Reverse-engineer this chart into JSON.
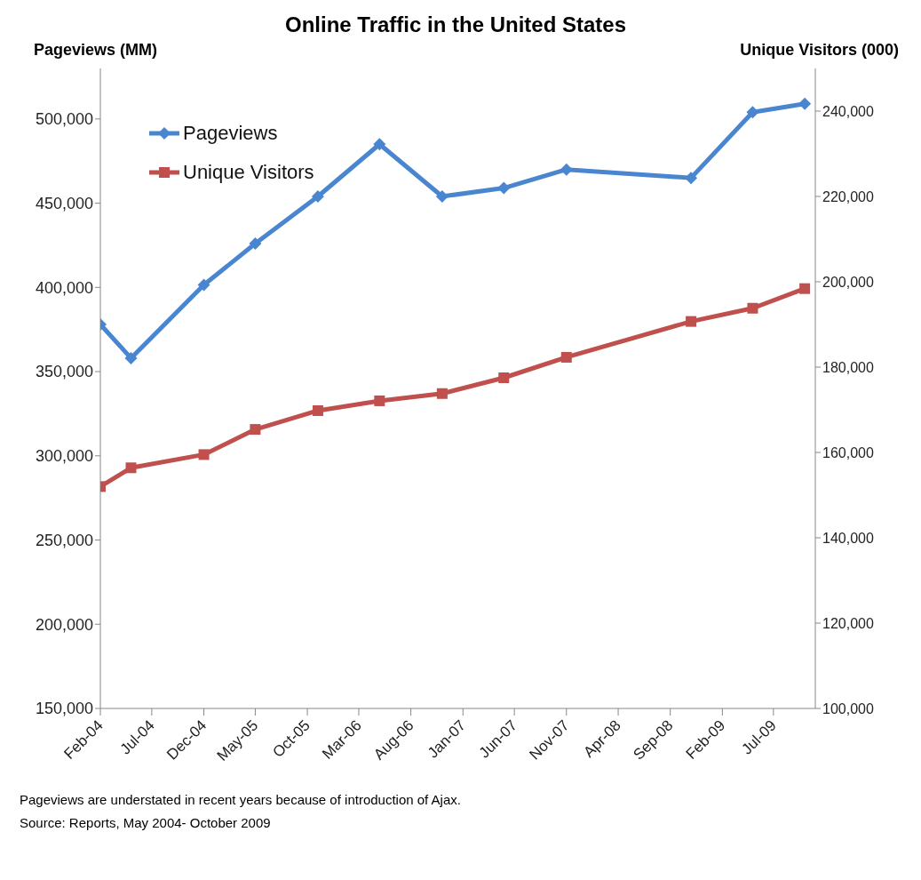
{
  "chart_data": {
    "type": "line",
    "title": "Online Traffic in the United States",
    "ylabel": "Pageviews (MM)",
    "y2label": "Unique Visitors (000)",
    "x": [
      "2004-02",
      "2004-05",
      "2004-12",
      "2005-05",
      "2005-11",
      "2006-05",
      "2006-11",
      "2007-05",
      "2007-11",
      "2008-11",
      "2009-05",
      "2009-10"
    ],
    "series": [
      {
        "name": "Pageviews",
        "color": "#4a86d0",
        "marker": "diamond",
        "values": [
          378000,
          358000,
          401500,
          426000,
          454000,
          485000,
          454000,
          459000,
          470000,
          465000,
          504000,
          509000
        ]
      },
      {
        "name": "Unique Visitors",
        "color": "#c0504d",
        "marker": "square",
        "axis": "y2",
        "values": [
          152000,
          156400,
          159500,
          165400,
          169800,
          172100,
          173800,
          177500,
          182300,
          190700,
          193800,
          198400
        ]
      }
    ],
    "xlim": [
      "2004-02",
      "2009-11"
    ],
    "xticks": [
      {
        "value": "2004-02",
        "label": "Feb-04"
      },
      {
        "value": "2004-07",
        "label": "Jul-04"
      },
      {
        "value": "2004-12",
        "label": "Dec-04"
      },
      {
        "value": "2005-05",
        "label": "May-05"
      },
      {
        "value": "2005-10",
        "label": "Oct-05"
      },
      {
        "value": "2006-03",
        "label": "Mar-06"
      },
      {
        "value": "2006-08",
        "label": "Aug-06"
      },
      {
        "value": "2007-01",
        "label": "Jan-07"
      },
      {
        "value": "2007-06",
        "label": "Jun-07"
      },
      {
        "value": "2007-11",
        "label": "Nov-07"
      },
      {
        "value": "2008-04",
        "label": "Apr-08"
      },
      {
        "value": "2008-09",
        "label": "Sep-08"
      },
      {
        "value": "2009-02",
        "label": "Feb-09"
      },
      {
        "value": "2009-07",
        "label": "Jul-09"
      }
    ],
    "ylim": [
      150000,
      530000
    ],
    "yticks": [
      {
        "value": 150000,
        "label": "150,000"
      },
      {
        "value": 200000,
        "label": "200,000"
      },
      {
        "value": 250000,
        "label": "250,000"
      },
      {
        "value": 300000,
        "label": "300,000"
      },
      {
        "value": 350000,
        "label": "350,000"
      },
      {
        "value": 400000,
        "label": "400,000"
      },
      {
        "value": 450000,
        "label": "450,000"
      },
      {
        "value": 500000,
        "label": "500,000"
      }
    ],
    "y2lim": [
      100000,
      250000
    ],
    "y2ticks": [
      {
        "value": 100000,
        "label": "100,000"
      },
      {
        "value": 120000,
        "label": "120,000"
      },
      {
        "value": 140000,
        "label": "140,000"
      },
      {
        "value": 160000,
        "label": "160,000"
      },
      {
        "value": 180000,
        "label": "180,000"
      },
      {
        "value": 200000,
        "label": "200,000"
      },
      {
        "value": 220000,
        "label": "220,000"
      },
      {
        "value": 240000,
        "label": "240,000"
      }
    ],
    "grid": false,
    "legend": "top left",
    "line_style": "solid",
    "annotations": [
      "Pageviews are understated in recent years because of introduction of Ajax.",
      "Source: Reports, May 2004- October 2009"
    ]
  }
}
